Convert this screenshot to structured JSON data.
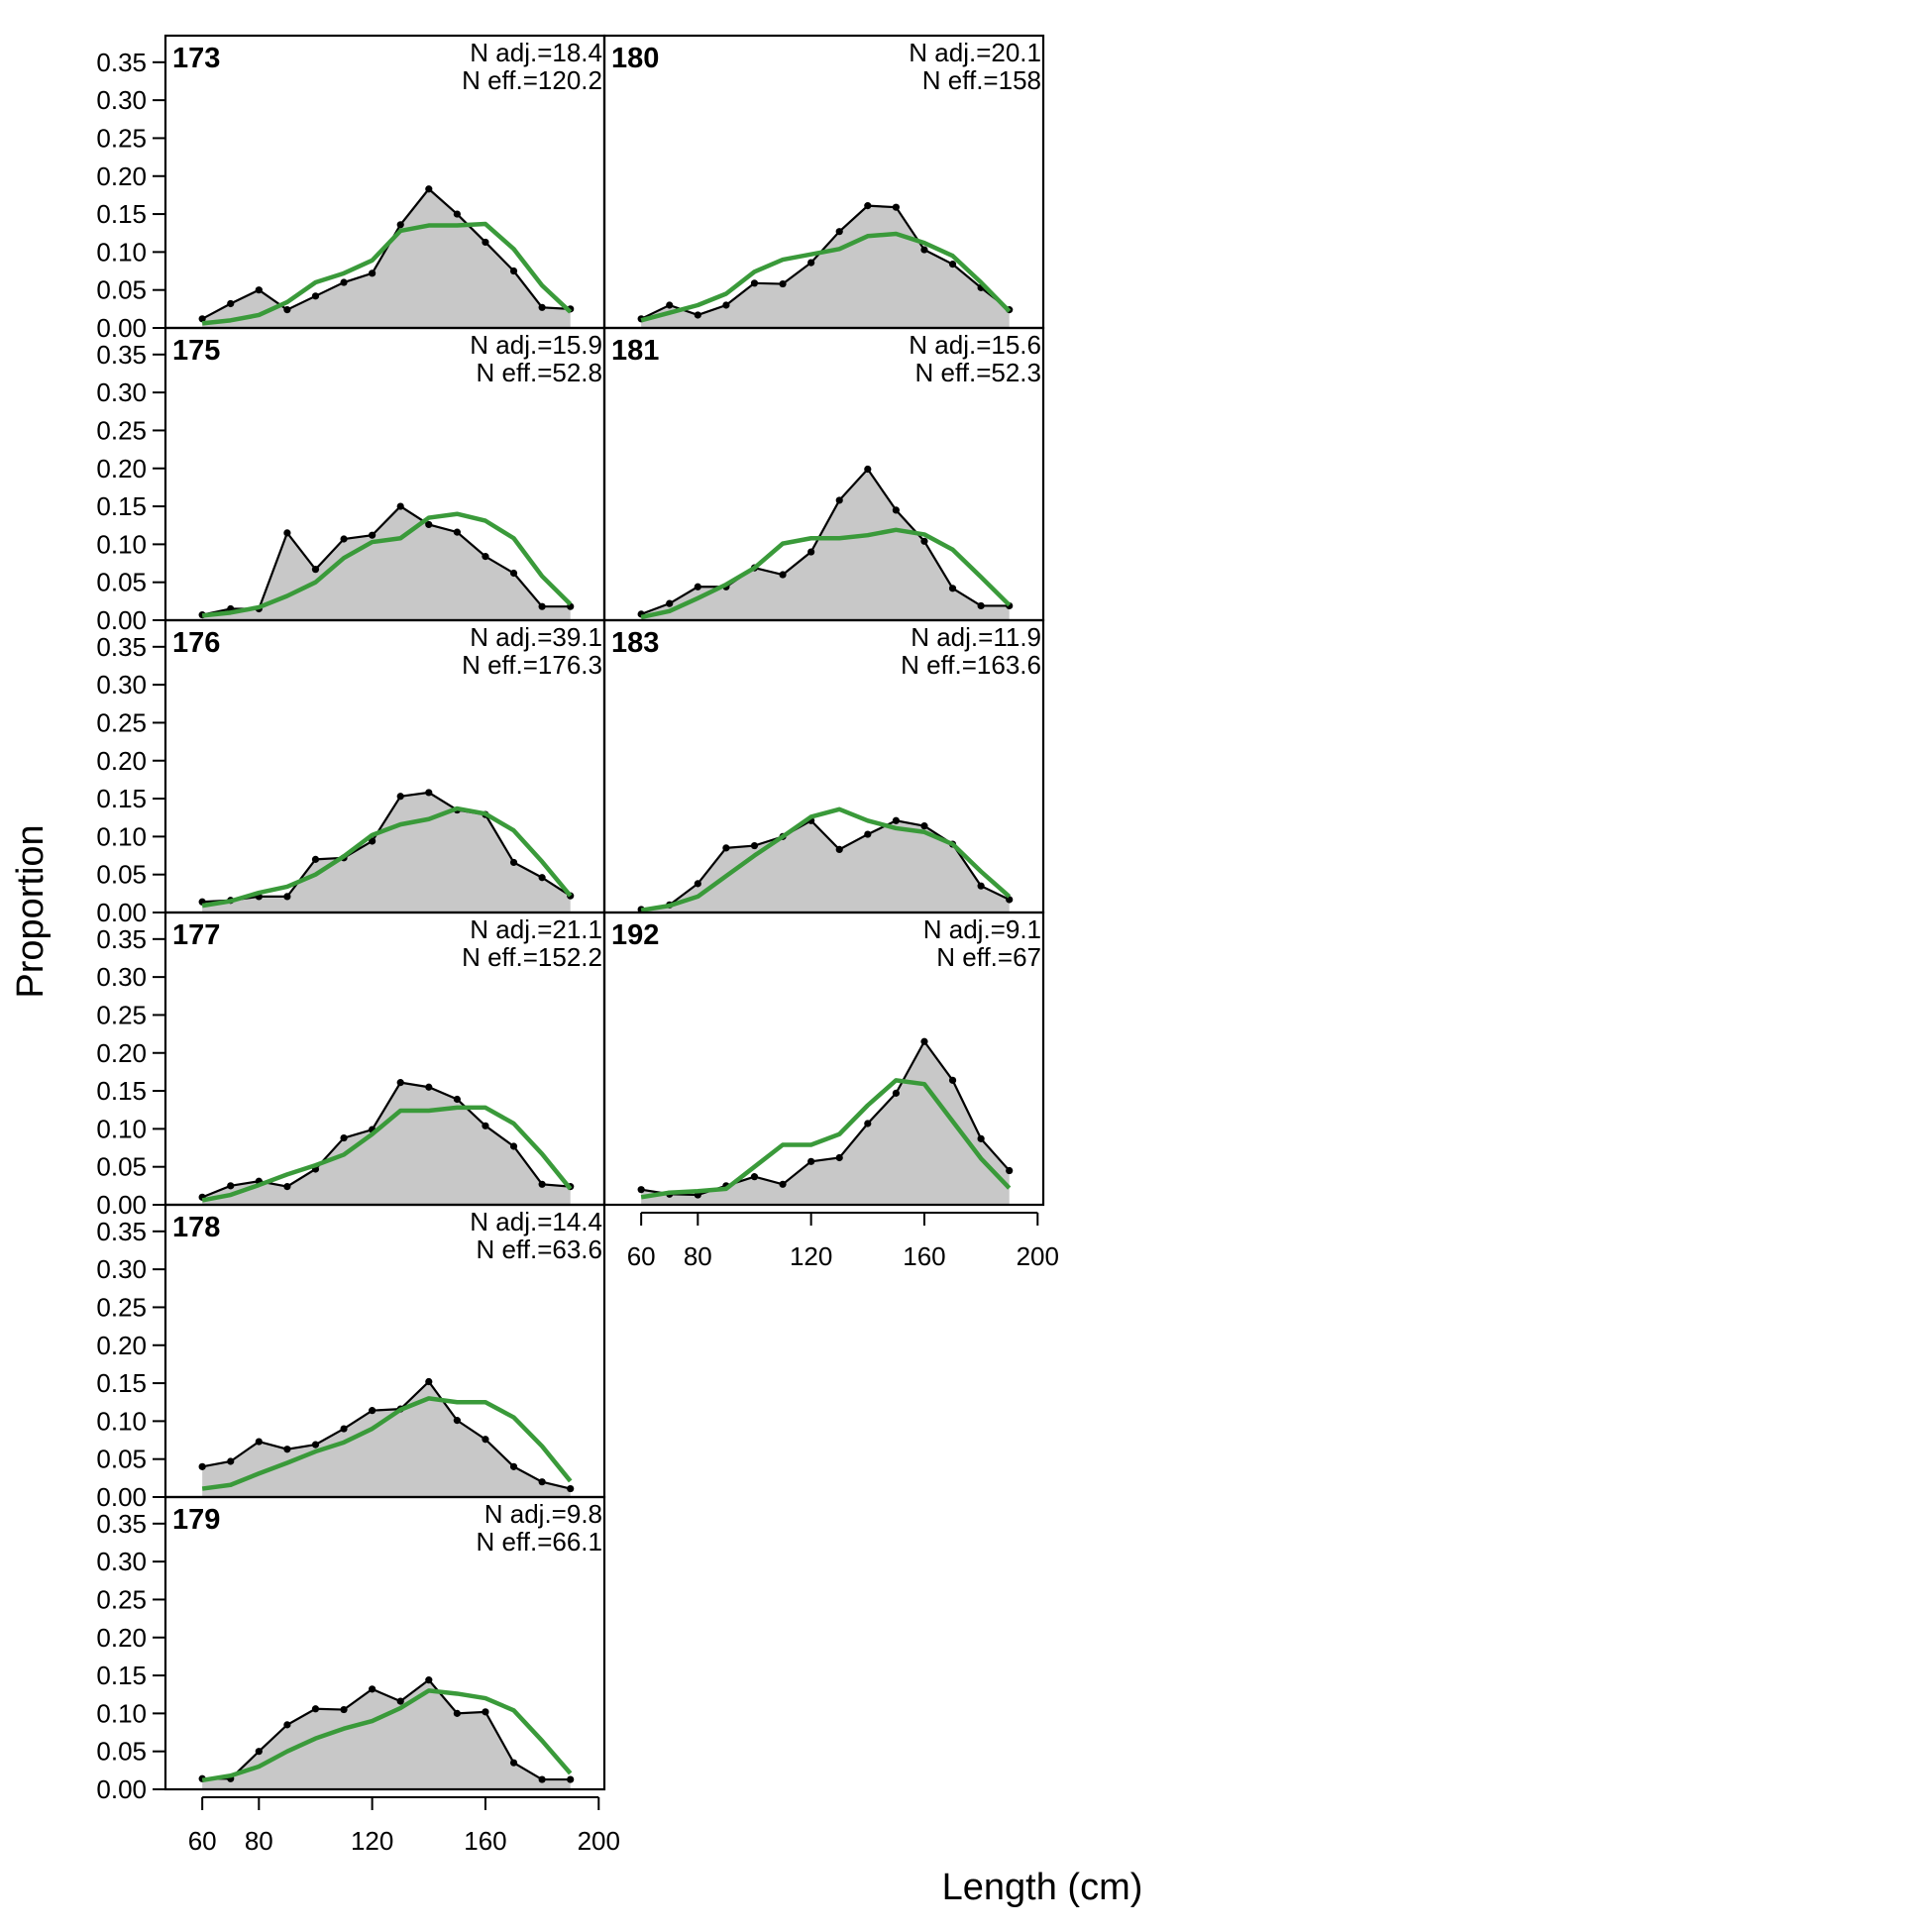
{
  "chart_data": {
    "type": "area",
    "xlabel": "Length (cm)",
    "ylabel": "Proportion",
    "xlim": [
      47,
      202
    ],
    "ylim": [
      0,
      0.385
    ],
    "x_ticks": [
      60,
      80,
      120,
      160,
      200
    ],
    "y_ticks": [
      "0.00",
      "0.05",
      "0.10",
      "0.15",
      "0.20",
      "0.25",
      "0.30",
      "0.35"
    ],
    "x": [
      60,
      70,
      80,
      90,
      100,
      110,
      120,
      130,
      140,
      150,
      160,
      170,
      180,
      190
    ],
    "colors": {
      "observed_fill": "#c8c8c8",
      "observed_line": "#000000",
      "expected_line": "#3a9a3a"
    },
    "panels": [
      {
        "id": "173",
        "n_adj": "N adj.=18.4",
        "n_eff": "N eff.=120.2",
        "observed": [
          0.012,
          0.032,
          0.05,
          0.024,
          0.042,
          0.06,
          0.072,
          0.136,
          0.183,
          0.15,
          0.113,
          0.075,
          0.027,
          0.025
        ],
        "expected": [
          0.006,
          0.01,
          0.017,
          0.034,
          0.06,
          0.072,
          0.089,
          0.128,
          0.135,
          0.135,
          0.137,
          0.104,
          0.056,
          0.021
        ]
      },
      {
        "id": "175",
        "n_adj": "N adj.=15.9",
        "n_eff": "N eff.=52.8",
        "observed": [
          0.007,
          0.015,
          0.015,
          0.115,
          0.067,
          0.107,
          0.112,
          0.15,
          0.126,
          0.116,
          0.084,
          0.062,
          0.018,
          0.018
        ],
        "expected": [
          0.006,
          0.01,
          0.017,
          0.032,
          0.05,
          0.082,
          0.103,
          0.108,
          0.135,
          0.14,
          0.131,
          0.108,
          0.058,
          0.021
        ]
      },
      {
        "id": "176",
        "n_adj": "N adj.=39.1",
        "n_eff": "N eff.=176.3",
        "observed": [
          0.014,
          0.016,
          0.021,
          0.021,
          0.07,
          0.072,
          0.094,
          0.153,
          0.158,
          0.135,
          0.129,
          0.066,
          0.046,
          0.022
        ],
        "expected": [
          0.009,
          0.015,
          0.026,
          0.034,
          0.05,
          0.074,
          0.102,
          0.116,
          0.123,
          0.137,
          0.13,
          0.108,
          0.067,
          0.022
        ]
      },
      {
        "id": "177",
        "n_adj": "N adj.=21.1",
        "n_eff": "N eff.=152.2",
        "observed": [
          0.01,
          0.025,
          0.031,
          0.024,
          0.047,
          0.088,
          0.099,
          0.161,
          0.155,
          0.139,
          0.104,
          0.077,
          0.027,
          0.024
        ],
        "expected": [
          0.006,
          0.013,
          0.026,
          0.04,
          0.052,
          0.066,
          0.093,
          0.124,
          0.124,
          0.128,
          0.128,
          0.107,
          0.067,
          0.021
        ]
      },
      {
        "id": "178",
        "n_adj": "N adj.=14.4",
        "n_eff": "N eff.=63.6",
        "observed": [
          0.04,
          0.047,
          0.073,
          0.063,
          0.069,
          0.09,
          0.114,
          0.116,
          0.152,
          0.101,
          0.076,
          0.04,
          0.02,
          0.011
        ],
        "expected": [
          0.011,
          0.016,
          0.031,
          0.045,
          0.06,
          0.072,
          0.09,
          0.115,
          0.13,
          0.125,
          0.125,
          0.105,
          0.067,
          0.021
        ]
      },
      {
        "id": "179",
        "n_adj": "N adj.=9.8",
        "n_eff": "N eff.=66.1",
        "observed": [
          0.014,
          0.014,
          0.05,
          0.085,
          0.106,
          0.105,
          0.132,
          0.116,
          0.144,
          0.1,
          0.102,
          0.035,
          0.013,
          0.013
        ],
        "expected": [
          0.012,
          0.018,
          0.03,
          0.05,
          0.067,
          0.08,
          0.09,
          0.107,
          0.13,
          0.126,
          0.12,
          0.104,
          0.064,
          0.021
        ]
      },
      {
        "id": "180",
        "n_adj": "N adj.=20.1",
        "n_eff": "N eff.=158",
        "observed": [
          0.012,
          0.03,
          0.017,
          0.03,
          0.059,
          0.058,
          0.086,
          0.127,
          0.161,
          0.159,
          0.103,
          0.084,
          0.053,
          0.024
        ],
        "expected": [
          0.01,
          0.02,
          0.03,
          0.045,
          0.074,
          0.09,
          0.097,
          0.104,
          0.121,
          0.124,
          0.112,
          0.095,
          0.06,
          0.022
        ]
      },
      {
        "id": "181",
        "n_adj": "N adj.=15.6",
        "n_eff": "N eff.=52.3",
        "observed": [
          0.008,
          0.022,
          0.044,
          0.044,
          0.069,
          0.06,
          0.09,
          0.158,
          0.199,
          0.145,
          0.104,
          0.042,
          0.019,
          0.019
        ],
        "expected": [
          0.004,
          0.012,
          0.029,
          0.047,
          0.069,
          0.101,
          0.108,
          0.108,
          0.112,
          0.119,
          0.113,
          0.093,
          0.057,
          0.02
        ]
      },
      {
        "id": "183",
        "n_adj": "N adj.=11.9",
        "n_eff": "N eff.=163.6",
        "observed": [
          0.004,
          0.01,
          0.038,
          0.085,
          0.088,
          0.1,
          0.121,
          0.083,
          0.103,
          0.121,
          0.114,
          0.09,
          0.035,
          0.017
        ],
        "expected": [
          0.003,
          0.009,
          0.021,
          0.048,
          0.075,
          0.1,
          0.126,
          0.136,
          0.121,
          0.111,
          0.106,
          0.09,
          0.054,
          0.021
        ]
      },
      {
        "id": "192",
        "n_adj": "N adj.=9.1",
        "n_eff": "N eff.=67",
        "observed": [
          0.02,
          0.014,
          0.013,
          0.025,
          0.037,
          0.027,
          0.057,
          0.062,
          0.107,
          0.147,
          0.215,
          0.164,
          0.087,
          0.045
        ],
        "expected": [
          0.01,
          0.016,
          0.018,
          0.021,
          0.05,
          0.079,
          0.079,
          0.093,
          0.131,
          0.164,
          0.159,
          0.11,
          0.061,
          0.022
        ]
      }
    ]
  }
}
